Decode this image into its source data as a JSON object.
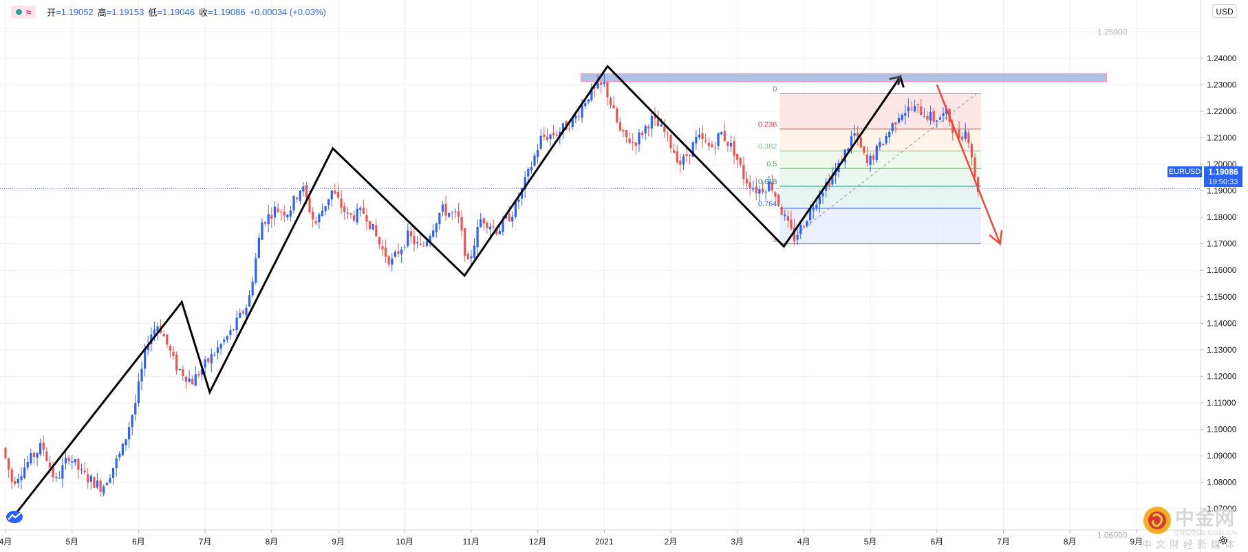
{
  "symbol": "EURUSD",
  "legend": {
    "open_label": "开",
    "open": "1.19052",
    "high_label": "高",
    "high": "1.19153",
    "low_label": "低",
    "low": "1.19046",
    "close_label": "收",
    "close": "1.19086",
    "change": "+0.00034 (+0.03%)"
  },
  "currency_button": "USD",
  "last_price": "1.19086",
  "countdown": "19:50:33",
  "watermark": {
    "name": "中金网",
    "domain": "CNGOLD.COM.CN",
    "tagline": "中文财经新媒体"
  },
  "icons": [
    "tradingview-logo-icon",
    "settings-gear-icon",
    "circle-dot-icon",
    "wave-icon"
  ],
  "colors": {
    "up": "#2962ff",
    "down": "#ef5350",
    "overlay": "#000000",
    "arrow": "#f44336",
    "price_line": "#2962ff"
  },
  "chart_data": {
    "type": "candlestick",
    "instrument": "EURUSD",
    "last": 1.19086,
    "y_range": [
      1.062,
      1.262
    ],
    "y_ticks": [
      "1.07000",
      "1.08000",
      "1.09000",
      "1.10000",
      "1.11000",
      "1.12000",
      "1.13000",
      "1.14000",
      "1.15000",
      "1.16000",
      "1.17000",
      "1.18000",
      "1.19000",
      "1.20000",
      "1.21000",
      "1.22000",
      "1.23000",
      "1.24000"
    ],
    "y_ticks_partial": [
      "1.25000",
      "1.06000"
    ],
    "x_ticks": [
      "4月",
      "5月",
      "6月",
      "7月",
      "8月",
      "9月",
      "10月",
      "11月",
      "12月",
      "2021",
      "2月",
      "3月",
      "4月",
      "5月",
      "6月",
      "7月",
      "8月",
      "9月"
    ],
    "x_range": [
      0,
      18.1
    ],
    "grid": true,
    "price_series_anchors": [
      [
        0.0,
        1.093
      ],
      [
        0.15,
        1.08
      ],
      [
        0.4,
        1.088
      ],
      [
        0.6,
        1.094
      ],
      [
        0.8,
        1.08
      ],
      [
        1.0,
        1.09
      ],
      [
        1.2,
        1.083
      ],
      [
        1.5,
        1.078
      ],
      [
        1.8,
        1.092
      ],
      [
        2.0,
        1.11
      ],
      [
        2.2,
        1.135
      ],
      [
        2.35,
        1.14
      ],
      [
        2.6,
        1.124
      ],
      [
        2.85,
        1.118
      ],
      [
        3.1,
        1.126
      ],
      [
        3.45,
        1.137
      ],
      [
        3.7,
        1.148
      ],
      [
        3.9,
        1.178
      ],
      [
        4.1,
        1.183
      ],
      [
        4.3,
        1.182
      ],
      [
        4.5,
        1.192
      ],
      [
        4.7,
        1.177
      ],
      [
        4.95,
        1.19
      ],
      [
        5.2,
        1.18
      ],
      [
        5.45,
        1.182
      ],
      [
        5.7,
        1.168
      ],
      [
        5.85,
        1.163
      ],
      [
        6.1,
        1.173
      ],
      [
        6.3,
        1.168
      ],
      [
        6.6,
        1.183
      ],
      [
        6.85,
        1.18
      ],
      [
        7.0,
        1.162
      ],
      [
        7.2,
        1.18
      ],
      [
        7.45,
        1.175
      ],
      [
        7.7,
        1.183
      ],
      [
        7.9,
        1.196
      ],
      [
        8.1,
        1.21
      ],
      [
        8.35,
        1.212
      ],
      [
        8.6,
        1.217
      ],
      [
        8.8,
        1.226
      ],
      [
        9.05,
        1.23
      ],
      [
        9.3,
        1.211
      ],
      [
        9.5,
        1.208
      ],
      [
        9.75,
        1.217
      ],
      [
        9.95,
        1.212
      ],
      [
        10.2,
        1.2
      ],
      [
        10.45,
        1.21
      ],
      [
        10.65,
        1.206
      ],
      [
        10.8,
        1.212
      ],
      [
        11.0,
        1.205
      ],
      [
        11.15,
        1.195
      ],
      [
        11.35,
        1.19
      ],
      [
        11.55,
        1.193
      ],
      [
        11.75,
        1.18
      ],
      [
        11.9,
        1.172
      ],
      [
        12.05,
        1.178
      ],
      [
        12.3,
        1.19
      ],
      [
        12.55,
        1.198
      ],
      [
        12.8,
        1.212
      ],
      [
        13.0,
        1.2
      ],
      [
        13.25,
        1.209
      ],
      [
        13.5,
        1.22
      ],
      [
        13.75,
        1.221
      ],
      [
        14.0,
        1.217
      ],
      [
        14.2,
        1.219
      ],
      [
        14.35,
        1.21
      ],
      [
        14.5,
        1.213
      ],
      [
        14.6,
        1.2
      ],
      [
        14.63,
        1.191
      ]
    ],
    "zigzag": [
      [
        0.15,
        1.068
      ],
      [
        2.65,
        1.148
      ],
      [
        3.07,
        1.114
      ],
      [
        4.92,
        1.206
      ],
      [
        6.9,
        1.158
      ],
      [
        9.05,
        1.237
      ],
      [
        11.7,
        1.169
      ],
      [
        13.45,
        1.233
      ],
      [
        13.5,
        1.229
      ]
    ],
    "arrows": [
      {
        "from": [
          14.0,
          1.23
        ],
        "to": [
          14.95,
          1.17
        ],
        "color": "#f44336"
      }
    ],
    "resistance_zone": {
      "x": [
        8.65,
        16.55
      ],
      "y": [
        1.2312,
        1.2342
      ]
    },
    "fibonacci": {
      "start": [
        11.7,
        1.17
      ],
      "end": [
        14.6,
        1.2267
      ],
      "levels": [
        {
          "ratio": "0",
          "price": 1.2267,
          "color": "#787b86"
        },
        {
          "ratio": "0.236",
          "price": 1.2133,
          "color": "#f23645"
        },
        {
          "ratio": "0.382",
          "price": 1.205,
          "color": "#81c784"
        },
        {
          "ratio": "0.5",
          "price": 1.1984,
          "color": "#4caf50"
        },
        {
          "ratio": "0.618",
          "price": 1.1917,
          "color": "#089981"
        },
        {
          "ratio": "0.764",
          "price": 1.1834,
          "color": "#2962ff"
        },
        {
          "ratio": "1",
          "price": 1.17,
          "color": "#787b86"
        }
      ]
    }
  }
}
